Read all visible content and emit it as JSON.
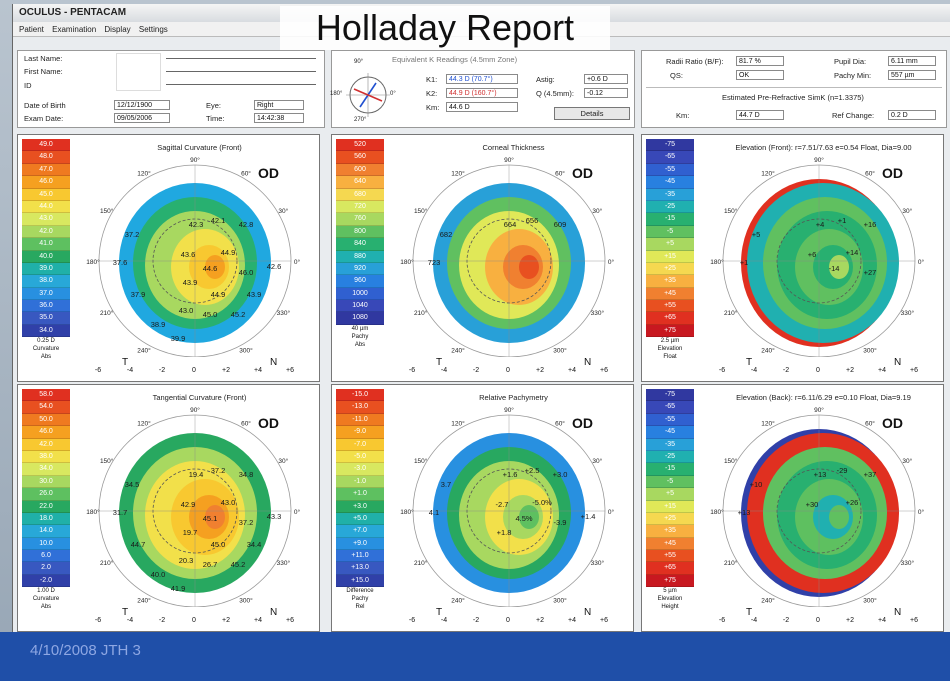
{
  "window": {
    "title": "OCULUS - PENTACAM",
    "report_title": "Holladay Report"
  },
  "menu": [
    "Patient",
    "Examination",
    "Display",
    "Settings"
  ],
  "patient": {
    "last_name_label": "Last Name:",
    "first_name_label": "First Name:",
    "id_label": "ID",
    "dob_label": "Date of Birth",
    "dob_value": "12/12/1900",
    "eye_label": "Eye:",
    "eye_value": "Right",
    "exam_date_label": "Exam Date:",
    "exam_date_value": "09/05/2006",
    "time_label": "Time:",
    "time_value": "14:42:38"
  },
  "keratometry": {
    "heading": "Equivalent K Readings (4.5mm Zone)",
    "k1_label": "K1:",
    "k1_value": "44.3 D (70.7°)",
    "k2_label": "K2:",
    "k2_value": "44.9 D (160.7°)",
    "km_label": "Km:",
    "km_value": "44.6 D",
    "astig_label": "Astig:",
    "astig_value": "+0.6 D",
    "q_label": "Q (4.5mm):",
    "q_value": "-0.12",
    "details_button": "Details",
    "compass_labels": [
      "90°",
      "0°",
      "270°",
      "180°"
    ]
  },
  "right_summary": {
    "radii_ratio_label": "Radii Ratio (B/F):",
    "radii_ratio_value": "81.7 %",
    "qs_label": "QS:",
    "qs_value": "OK",
    "pupil_dia_label": "Pupil Dia:",
    "pupil_dia_value": "6.11 mm",
    "pachy_min_label": "Pachy Min:",
    "pachy_min_value": "557 µm",
    "est_heading": "Estimated Pre-Refractive SimK (n=1.3375)",
    "km_label": "Km:",
    "km_value": "44.7 D",
    "ref_change_label": "Ref Change:",
    "ref_change_value": "0.2 D"
  },
  "maps": [
    {
      "id": "sagittal",
      "title": "Sagittal Curvature (Front)",
      "od": "OD",
      "scale": [
        "49.0",
        "48.0",
        "47.0",
        "46.0",
        "45.0",
        "44.0",
        "43.0",
        "42.0",
        "41.0",
        "40.0",
        "39.0",
        "38.0",
        "37.0",
        "36.0",
        "35.0",
        "34.0"
      ],
      "scale_colors": [
        "#e03020",
        "#e85020",
        "#ef7a20",
        "#f5a020",
        "#f8c830",
        "#f2e04a",
        "#d8e860",
        "#a8d860",
        "#5ec060",
        "#28a860",
        "#20b0a8",
        "#28a8d8",
        "#2890e0",
        "#3070d8",
        "#3858c0",
        "#3040a8"
      ],
      "foot": [
        "0.25 D",
        "Curvature",
        "Abs"
      ],
      "values": [
        "42.3",
        "42.1",
        "42.8",
        "37.2",
        "37.6",
        "43.6",
        "44.9",
        "44.6",
        "46.0",
        "43.9",
        "42.6",
        "37.9",
        "44.9",
        "43.9",
        "43.0",
        "45.0",
        "45.2",
        "38.9",
        "39.9"
      ]
    },
    {
      "id": "thickness",
      "title": "Corneal Thickness",
      "od": "OD",
      "scale": [
        "520",
        "560",
        "600",
        "640",
        "680",
        "720",
        "760",
        "800",
        "840",
        "880",
        "920",
        "960",
        "1000",
        "1040",
        "1080"
      ],
      "scale_colors": [
        "#e03020",
        "#e85020",
        "#f08030",
        "#f8b040",
        "#f5d850",
        "#d8e860",
        "#a8d860",
        "#60c060",
        "#28b070",
        "#20b0b0",
        "#28a0d8",
        "#2880e0",
        "#3060d0",
        "#3848b8",
        "#3038a0"
      ],
      "foot": [
        "40 µm",
        "Pachy",
        "Abs"
      ],
      "values": [
        "664",
        "656",
        "609",
        "682",
        "723"
      ]
    },
    {
      "id": "elevation_front",
      "title": "Elevation (Front): r=7.51/7.63 e=0.54 Float, Dia=9.00",
      "od": "OD",
      "scale": [
        "-75",
        "-65",
        "-55",
        "-45",
        "-35",
        "-25",
        "-15",
        "-5",
        "+5",
        "+15",
        "+25",
        "+35",
        "+45",
        "+55",
        "+65",
        "+75"
      ],
      "scale_colors": [
        "#3038a0",
        "#3848b8",
        "#3060d0",
        "#2880e0",
        "#28a0d8",
        "#20b0b0",
        "#28b070",
        "#60c060",
        "#a8d860",
        "#e0e858",
        "#f5d850",
        "#f8b040",
        "#f08030",
        "#e85020",
        "#e03020",
        "#c81820"
      ],
      "foot": [
        "2.5 µm",
        "Elevation",
        "Float"
      ],
      "values": [
        "+4",
        "+1",
        "+16",
        "+5",
        "+1",
        "+6",
        "+14",
        "-14",
        "+27"
      ]
    },
    {
      "id": "tangential",
      "title": "Tangential Curvature (Front)",
      "od": "OD",
      "scale": [
        "58.0",
        "54.0",
        "50.0",
        "46.0",
        "42.0",
        "38.0",
        "34.0",
        "30.0",
        "26.0",
        "22.0",
        "18.0",
        "14.0",
        "10.0",
        "6.0",
        "2.0",
        "-2.0"
      ],
      "scale_colors": [
        "#e03020",
        "#e85020",
        "#ef7a20",
        "#f5a020",
        "#f8c830",
        "#f2e04a",
        "#d8e860",
        "#a8d860",
        "#5ec060",
        "#28a860",
        "#20b0a8",
        "#28a8d8",
        "#2890e0",
        "#3070d8",
        "#3858c0",
        "#3040a8"
      ],
      "foot": [
        "1.00 D",
        "Curvature",
        "Abs"
      ],
      "values": [
        "19.4",
        "37.2",
        "34.8",
        "34.5",
        "31.7",
        "42.9",
        "43.0",
        "45.1",
        "37.2",
        "19.7",
        "43.3",
        "44.7",
        "45.0",
        "34.4",
        "20.3",
        "26.7",
        "45.2",
        "40.0",
        "41.9"
      ]
    },
    {
      "id": "relative_pachy",
      "title": "Relative Pachymetry",
      "od": "OD",
      "scale": [
        "-15.0",
        "-13.0",
        "-11.0",
        "-9.0",
        "-7.0",
        "-5.0",
        "-3.0",
        "-1.0",
        "+1.0",
        "+3.0",
        "+5.0",
        "+7.0",
        "+9.0",
        "+11.0",
        "+13.0",
        "+15.0"
      ],
      "scale_colors": [
        "#e03020",
        "#e85020",
        "#ef7a20",
        "#f5a020",
        "#f8c830",
        "#f2e04a",
        "#d8e860",
        "#a8d860",
        "#5ec060",
        "#28a860",
        "#20b0a8",
        "#28a8d8",
        "#2890e0",
        "#3070d8",
        "#3858c0",
        "#3040a8"
      ],
      "foot": [
        "Difference",
        "Pachy",
        "Rel"
      ],
      "values": [
        "+1.6",
        "+2.5",
        "+3.0",
        "3.7",
        "4.1",
        "-2.7",
        "-5.0%",
        "4.5%",
        "-3.9",
        "+1.8",
        "+1.4"
      ]
    },
    {
      "id": "elevation_back",
      "title": "Elevation (Back): r=6.11/6.29 e=0.10 Float, Dia=9.19",
      "od": "OD",
      "scale": [
        "-75",
        "-65",
        "-55",
        "-45",
        "-35",
        "-25",
        "-15",
        "-5",
        "+5",
        "+15",
        "+25",
        "+35",
        "+45",
        "+55",
        "+65",
        "+75"
      ],
      "scale_colors": [
        "#3038a0",
        "#3848b8",
        "#3060d0",
        "#2880e0",
        "#28a0d8",
        "#20b0b0",
        "#28b070",
        "#60c060",
        "#a8d860",
        "#e0e858",
        "#f5d850",
        "#f8b040",
        "#f08030",
        "#e85020",
        "#e03020",
        "#c81820"
      ],
      "foot": [
        "5 µm",
        "Elevation",
        "Height"
      ],
      "values": [
        "+13",
        "-29",
        "+37",
        "+10",
        "+13",
        "+30",
        "+26"
      ]
    }
  ],
  "map_axes": {
    "ticks": [
      "-6",
      "-4",
      "-2",
      "0",
      "+2",
      "+4",
      "+6"
    ],
    "t": "T",
    "n": "N",
    "angles": [
      "90°",
      "60°",
      "30°",
      "0°",
      "330°",
      "300°",
      "270°",
      "240°",
      "210°",
      "180°",
      "150°",
      "120°"
    ]
  },
  "footer": "4/10/2008  JTH  3"
}
